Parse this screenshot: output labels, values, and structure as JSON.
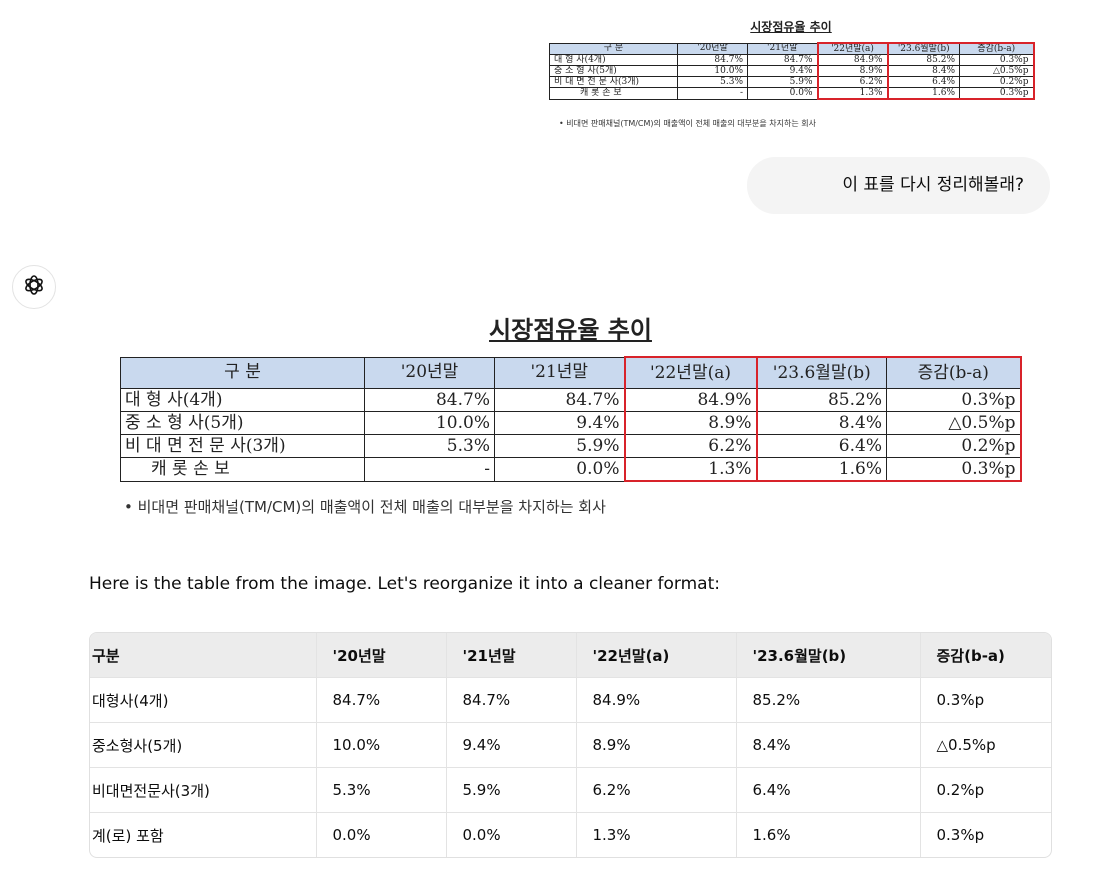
{
  "scan_table": {
    "title": "시장점유율 추이",
    "headers": [
      "구 분",
      "'20년말",
      "'21년말",
      "'22년말(a)",
      "'23.6월말(b)",
      "증감(b-a)"
    ],
    "rows": [
      [
        "대 형 사(4개)",
        "84.7%",
        "84.7%",
        "84.9%",
        "85.2%",
        "0.3%p"
      ],
      [
        "중 소 형 사(5개)",
        "10.0%",
        "9.4%",
        "8.9%",
        "8.4%",
        "△0.5%p"
      ],
      [
        "비 대 면 전 문 사(3개)",
        "5.3%",
        "5.9%",
        "6.2%",
        "6.4%",
        "0.2%p"
      ],
      [
        "캐 롯 손 보",
        "-",
        "0.0%",
        "1.3%",
        "1.6%",
        "0.3%p"
      ]
    ],
    "note": "• 비대면 판매채널(TM/CM)의 매출액이 전체 매출의 대부분을 차지하는 회사",
    "highlight_color": "#d8232a",
    "header_bg": "#c9d9ee"
  },
  "user_message": "이 표를 다시 정리해볼래?",
  "assistant": {
    "avatar_icon": "openai-logo-icon",
    "reply_text": "Here is the table from the image. Let's reorganize it into a cleaner format:",
    "table": {
      "headers": [
        "구분",
        "'20년말",
        "'21년말",
        "'22년말(a)",
        "'23.6월말(b)",
        "증감(b-a)"
      ],
      "rows": [
        [
          "대형사(4개)",
          "84.7%",
          "84.7%",
          "84.9%",
          "85.2%",
          "0.3%p"
        ],
        [
          "중소형사(5개)",
          "10.0%",
          "9.4%",
          "8.9%",
          "8.4%",
          "△0.5%p"
        ],
        [
          "비대면전문사(3개)",
          "5.3%",
          "5.9%",
          "6.2%",
          "6.4%",
          "0.2%p"
        ],
        [
          "계(로) 포함",
          "0.0%",
          "0.0%",
          "1.3%",
          "1.6%",
          "0.3%p"
        ]
      ]
    }
  }
}
